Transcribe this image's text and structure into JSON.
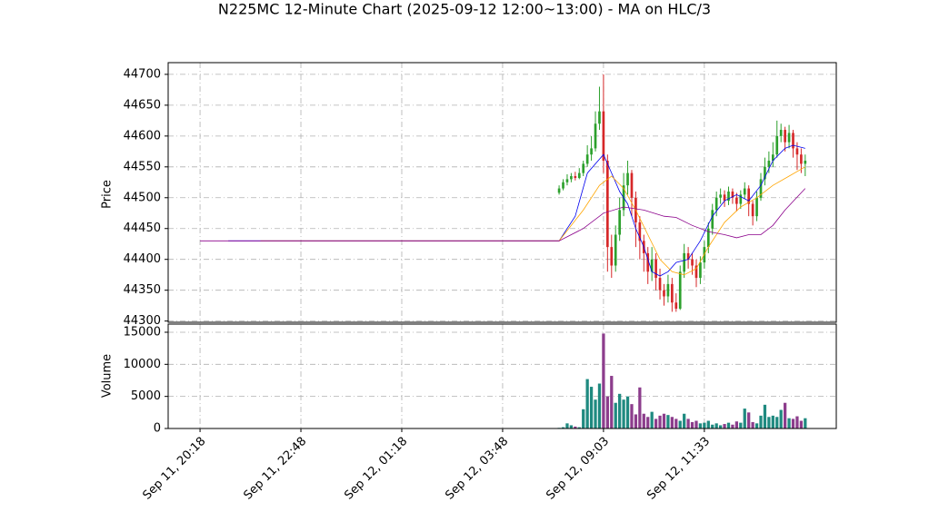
{
  "chart_data": {
    "type": "candlestick",
    "title": "N225MC 12-Minute Chart (2025-09-12 12:00~13:00) - MA on HLC/3",
    "ylabel": "Price",
    "volume_ylabel": "Volume",
    "grid": true,
    "xlim": [
      -7.9,
      157.7
    ],
    "xticks": [
      {
        "value": 0,
        "label": "Sep 11, 20:18"
      },
      {
        "value": 25,
        "label": "Sep 11, 22:48"
      },
      {
        "value": 50,
        "label": "Sep 12, 01:18"
      },
      {
        "value": 75,
        "label": "Sep 12, 03:48"
      },
      {
        "value": 100,
        "label": "Sep 12, 09:03"
      },
      {
        "value": 125,
        "label": "Sep 12, 11:33"
      }
    ],
    "ylim": [
      44298,
      44719
    ],
    "yticks": [
      44300,
      44350,
      44400,
      44450,
      44500,
      44550,
      44600,
      44650,
      44700
    ],
    "vol_ylim": [
      0,
      16270
    ],
    "vol_yticks": [
      0,
      5000,
      10000,
      15000
    ],
    "up_color": "#2ca02c",
    "down_color": "#d62728",
    "volume_up_color": "#1f8a80",
    "volume_down_color": "#8c3d8c",
    "x": [
      89,
      90,
      91,
      92,
      93,
      94,
      95,
      96,
      97,
      98,
      99,
      100,
      101,
      102,
      103,
      104,
      105,
      106,
      107,
      108,
      109,
      110,
      111,
      112,
      113,
      114,
      115,
      116,
      117,
      118,
      119,
      120,
      121,
      122,
      123,
      124,
      125,
      126,
      127,
      128,
      129,
      130,
      131,
      132,
      133,
      134,
      135,
      136,
      137,
      138,
      139,
      140,
      141,
      142,
      143,
      144,
      145,
      146,
      147,
      148,
      149,
      150
    ],
    "open": [
      44508,
      44515,
      44525,
      44530,
      44535,
      44532,
      44540,
      44555,
      44570,
      44580,
      44620,
      44640,
      44560,
      44420,
      44390,
      44440,
      44480,
      44520,
      44540,
      44500,
      44460,
      44430,
      44410,
      44380,
      44400,
      44370,
      44350,
      44340,
      44360,
      44330,
      44320,
      44380,
      44410,
      44400,
      44390,
      44370,
      44395,
      44420,
      44450,
      44480,
      44500,
      44505,
      44495,
      44510,
      44500,
      44490,
      44505,
      44515,
      44490,
      44470,
      44500,
      44530,
      44550,
      44560,
      44570,
      44600,
      44610,
      44590,
      44605,
      44580,
      44570,
      44555
    ],
    "high": [
      44520,
      44530,
      44538,
      44540,
      44542,
      44548,
      44560,
      44585,
      44600,
      44640,
      44680,
      44700,
      44570,
      44440,
      44455,
      44500,
      44540,
      44560,
      44545,
      44510,
      44470,
      44440,
      44420,
      44420,
      44410,
      44385,
      44360,
      44375,
      44370,
      44345,
      44390,
      44425,
      44420,
      44410,
      44400,
      44405,
      44430,
      44460,
      44490,
      44510,
      44515,
      44512,
      44518,
      44515,
      44508,
      44512,
      44525,
      44520,
      44495,
      44510,
      44540,
      44565,
      44575,
      44590,
      44625,
      44620,
      44615,
      44618,
      44610,
      44590,
      44580,
      44570
    ],
    "low": [
      44505,
      44512,
      44520,
      44525,
      44528,
      44530,
      44535,
      44550,
      44560,
      44575,
      44610,
      44540,
      44380,
      44370,
      44380,
      44430,
      44470,
      44505,
      44470,
      44420,
      44400,
      44380,
      44360,
      44365,
      44350,
      44335,
      44325,
      44330,
      44315,
      44315,
      44318,
      44370,
      44385,
      44375,
      44355,
      44360,
      44385,
      44410,
      44440,
      44470,
      44490,
      44485,
      44488,
      44490,
      44478,
      44482,
      44498,
      44470,
      44455,
      44462,
      44495,
      44520,
      44540,
      44550,
      44565,
      44590,
      44575,
      44580,
      44565,
      44545,
      44540,
      44535
    ],
    "close": [
      44515,
      44525,
      44530,
      44535,
      44532,
      44540,
      44555,
      44570,
      44580,
      44620,
      44640,
      44560,
      44420,
      44390,
      44440,
      44480,
      44520,
      44540,
      44500,
      44460,
      44430,
      44410,
      44380,
      44400,
      44370,
      44350,
      44340,
      44360,
      44330,
      44320,
      44380,
      44410,
      44400,
      44390,
      44370,
      44395,
      44420,
      44450,
      44480,
      44500,
      44505,
      44495,
      44510,
      44500,
      44490,
      44505,
      44515,
      44490,
      44470,
      44500,
      44530,
      44550,
      44560,
      44570,
      44600,
      44610,
      44590,
      44605,
      44580,
      44570,
      44555,
      44560
    ],
    "volume": [
      100,
      200,
      800,
      500,
      300,
      200,
      3000,
      7700,
      6500,
      4500,
      7000,
      14800,
      5000,
      8200,
      4000,
      5400,
      4500,
      5000,
      3800,
      2200,
      6400,
      2300,
      1800,
      2600,
      1500,
      2000,
      2300,
      2100,
      1800,
      1500,
      1200,
      2300,
      1500,
      1000,
      1200,
      800,
      900,
      1200,
      600,
      800,
      500,
      700,
      900,
      600,
      1100,
      900,
      3100,
      2500,
      1000,
      800,
      2000,
      3700,
      1800,
      2000,
      1800,
      2900,
      4000,
      1600,
      1500,
      1900,
      1200,
      1600
    ],
    "ma": [
      {
        "color": "#0000ee",
        "x": [
          7,
          89,
          93,
          96,
          100,
          102,
          104,
          106,
          108,
          110,
          112,
          114,
          116,
          118,
          121,
          124,
          127,
          130,
          133,
          136,
          139,
          142,
          145,
          147,
          150
        ],
        "values": [
          44430,
          44430,
          44470,
          44540,
          44570,
          44540,
          44510,
          44490,
          44450,
          44420,
          44380,
          44373,
          44380,
          44395,
          44400,
          44430,
          44470,
          44495,
          44505,
          44495,
          44520,
          44560,
          44580,
          44585,
          44580
        ]
      },
      {
        "color": "#ffa500",
        "x": [
          15,
          89,
          95,
          99,
          102,
          105,
          108,
          111,
          114,
          117,
          120,
          123,
          126,
          130,
          134,
          138,
          142,
          146,
          150
        ],
        "values": [
          44430,
          44430,
          44480,
          44520,
          44535,
          44515,
          44480,
          44440,
          44400,
          44380,
          44375,
          44385,
          44420,
          44460,
          44485,
          44500,
          44520,
          44535,
          44550
        ]
      },
      {
        "color": "#8b008b",
        "x": [
          0,
          89,
          95,
          100,
          105,
          110,
          115,
          118,
          122,
          126,
          130,
          133,
          136,
          139,
          142,
          145,
          150
        ],
        "values": [
          44430,
          44430,
          44450,
          44475,
          44485,
          44480,
          44470,
          44468,
          44455,
          44445,
          44440,
          44435,
          44440,
          44440,
          44455,
          44480,
          44515
        ]
      }
    ]
  }
}
